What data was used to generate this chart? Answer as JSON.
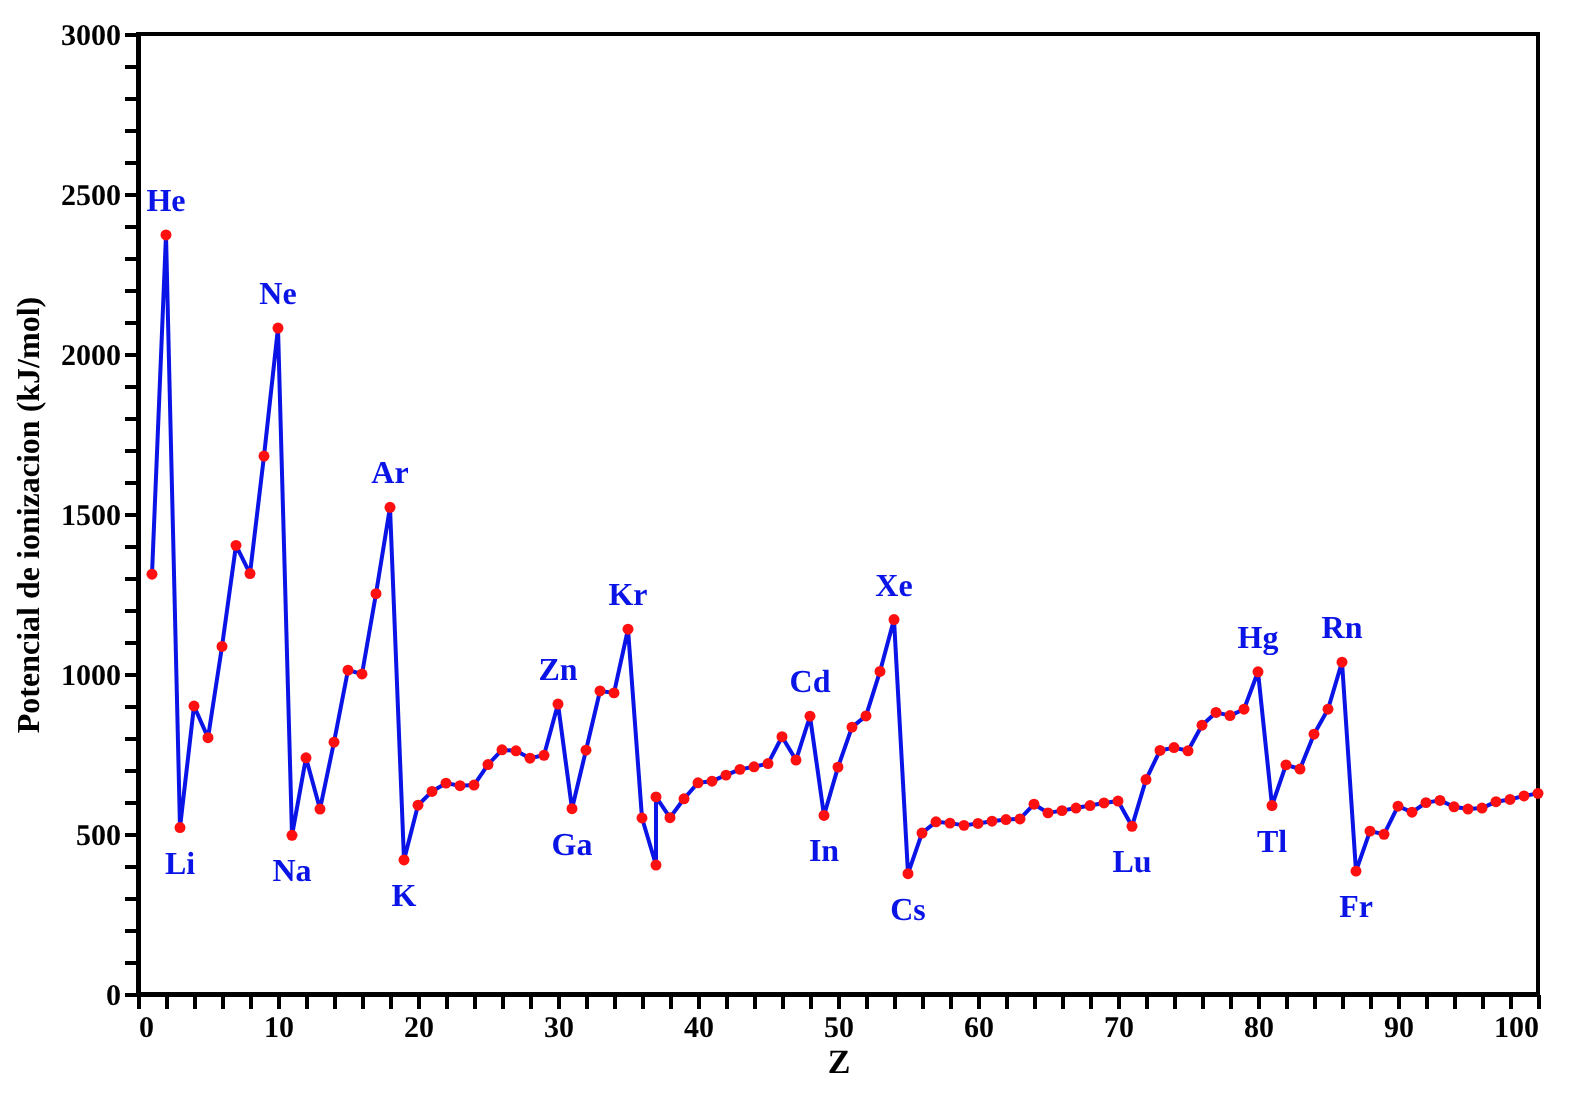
{
  "chart_data": {
    "type": "line",
    "xlabel": "Z",
    "ylabel": "Potencial de ionizacion (kJ/mol)",
    "xlim": [
      0,
      100
    ],
    "ylim": [
      0,
      3000
    ],
    "xticks": [
      0,
      {
        "value": 2,
        "label": null
      },
      {
        "value": 4,
        "label": null
      },
      {
        "value": 6,
        "label": null
      },
      {
        "value": 8,
        "label": null
      },
      10,
      {
        "value": 12,
        "label": null
      },
      {
        "value": 14,
        "label": null
      },
      {
        "value": 16,
        "label": null
      },
      {
        "value": 18,
        "label": null
      },
      20,
      {
        "value": 22,
        "label": null
      },
      {
        "value": 24,
        "label": null
      },
      {
        "value": 26,
        "label": null
      },
      {
        "value": 28,
        "label": null
      },
      30,
      {
        "value": 32,
        "label": null
      },
      {
        "value": 34,
        "label": null
      },
      {
        "value": 36,
        "label": null
      },
      {
        "value": 38,
        "label": null
      },
      40,
      {
        "value": 42,
        "label": null
      },
      {
        "value": 44,
        "label": null
      },
      {
        "value": 46,
        "label": null
      },
      {
        "value": 48,
        "label": null
      },
      50,
      {
        "value": 52,
        "label": null
      },
      {
        "value": 54,
        "label": null
      },
      {
        "value": 56,
        "label": null
      },
      {
        "value": 58,
        "label": null
      },
      60,
      {
        "value": 62,
        "label": null
      },
      {
        "value": 64,
        "label": null
      },
      {
        "value": 66,
        "label": null
      },
      {
        "value": 68,
        "label": null
      },
      70,
      {
        "value": 72,
        "label": null
      },
      {
        "value": 74,
        "label": null
      },
      {
        "value": 76,
        "label": null
      },
      {
        "value": 78,
        "label": null
      },
      80,
      {
        "value": 82,
        "label": null
      },
      {
        "value": 84,
        "label": null
      },
      {
        "value": 86,
        "label": null
      },
      {
        "value": 88,
        "label": null
      },
      90,
      {
        "value": 92,
        "label": null
      },
      {
        "value": 94,
        "label": null
      },
      {
        "value": 96,
        "label": null
      },
      {
        "value": 98,
        "label": null
      },
      100
    ],
    "yticks": [
      0,
      {
        "value": 100,
        "label": null
      },
      {
        "value": 200,
        "label": null
      },
      {
        "value": 300,
        "label": null
      },
      {
        "value": 400,
        "label": null
      },
      500,
      {
        "value": 600,
        "label": null
      },
      {
        "value": 700,
        "label": null
      },
      {
        "value": 800,
        "label": null
      },
      {
        "value": 900,
        "label": null
      },
      1000,
      {
        "value": 1100,
        "label": null
      },
      {
        "value": 1200,
        "label": null
      },
      {
        "value": 1300,
        "label": null
      },
      {
        "value": 1400,
        "label": null
      },
      1500,
      {
        "value": 1600,
        "label": null
      },
      {
        "value": 1700,
        "label": null
      },
      {
        "value": 1800,
        "label": null
      },
      {
        "value": 1900,
        "label": null
      },
      2000,
      {
        "value": 2100,
        "label": null
      },
      {
        "value": 2200,
        "label": null
      },
      {
        "value": 2300,
        "label": null
      },
      {
        "value": 2400,
        "label": null
      },
      2500,
      {
        "value": 2600,
        "label": null
      },
      {
        "value": 2700,
        "label": null
      },
      {
        "value": 2800,
        "label": null
      },
      {
        "value": 2900,
        "label": null
      },
      3000
    ],
    "grid": false,
    "marker": "circle",
    "line_style": "solid",
    "series": [
      {
        "color": "#0a14e6",
        "x": [
          1,
          2,
          3,
          4,
          5,
          6,
          7,
          8,
          9,
          10,
          11,
          12,
          13,
          14,
          15,
          16,
          17,
          18,
          19,
          20,
          21,
          22,
          23,
          24,
          25,
          26,
          27,
          28,
          29,
          30,
          31,
          32,
          33,
          34,
          35,
          36,
          37,
          37,
          38,
          39,
          40,
          41,
          42,
          43,
          44,
          45,
          46,
          47,
          48,
          49,
          50,
          51,
          52,
          53,
          54,
          55,
          56,
          57,
          58,
          59,
          60,
          61,
          62,
          63,
          64,
          65,
          66,
          67,
          68,
          69,
          70,
          71,
          72,
          73,
          74,
          75,
          76,
          77,
          78,
          79,
          80,
          81,
          82,
          83,
          84,
          85,
          86,
          87,
          88,
          89,
          90,
          91,
          92,
          93,
          94,
          95,
          96,
          97,
          98,
          99,
          100
        ],
        "values": [
          1312,
          2372,
          520,
          900,
          801,
          1086,
          1402,
          1314,
          1681,
          2081,
          496,
          738,
          578,
          787,
          1012,
          1000,
          1251,
          1521,
          419,
          590,
          633,
          659,
          651,
          653,
          717,
          763,
          760,
          737,
          746,
          906,
          579,
          762,
          947,
          941,
          1140,
          550,
          403,
          616,
          551,
          610,
          660,
          665,
          684,
          702,
          710,
          720,
          804,
          731,
          868,
          558,
          709,
          834,
          869,
          1008,
          1170,
          376,
          503,
          538,
          534,
          527,
          533,
          540,
          545,
          547,
          593,
          566,
          573,
          581,
          589,
          597,
          603,
          524,
          670,
          761,
          770,
          760,
          840,
          880,
          870,
          890,
          1007,
          589,
          716,
          703,
          812,
          890,
          1037,
          384,
          509,
          499,
          587,
          568,
          598,
          605,
          585,
          578,
          581,
          601,
          608,
          619,
          627
        ],
        "colors": [
          "#ff1010",
          "#ff1010",
          "#ff1010",
          "#ff1010",
          "#ff1010",
          "#ff1010",
          "#ff1010",
          "#ff1010",
          "#ff1010",
          "#ff1010",
          "#ff1010",
          "#ff1010",
          "#ff1010",
          "#ff1010",
          "#ff1010",
          "#ff1010",
          "#ff1010",
          "#ff1010",
          "#ff1010",
          "#ff1010",
          "#ff1010",
          "#ff1010",
          "#ff1010",
          "#ff1010",
          "#ff1010",
          "#ff1010",
          "#ff1010",
          "#ff1010",
          "#ff1010",
          "#ff1010",
          "#ff1010",
          "#ff1010",
          "#ff1010",
          "#ff1010",
          "#ff1010",
          "#ff1010",
          "#ff1010",
          "#ff1010",
          "#ff1010",
          "#ff1010",
          "#ff1010",
          "#ff1010",
          "#ff1010",
          "#ff1010",
          "#ff1010",
          "#ff1010",
          "#ff1010",
          "#ff1010",
          "#ff1010",
          "#ff1010",
          "#ff1010",
          "#ff1010",
          "#ff1010",
          "#ff1010",
          "#ff1010",
          "#ff1010",
          "#ff1010",
          "#ff1010",
          "#ff1010",
          "#ff1010",
          "#ff1010",
          "#ff1010",
          "#ff1010",
          "#ff1010",
          "#ff1010",
          "#ff1010",
          "#ff1010",
          "#ff1010",
          "#ff1010",
          "#ff1010",
          "#ff1010",
          "#ff1010",
          "#ff1010",
          "#ff1010",
          "#ff1010",
          "#ff1010",
          "#ff1010",
          "#ff1010",
          "#ff1010",
          "#ff1010",
          "#ff1010",
          "#ff1010",
          "#ff1010",
          "#ff1010",
          "#ff1010",
          "#ff1010",
          "#ff1010",
          "#ff1010",
          "#ff1010",
          "#ff1010",
          "#ff1010",
          "#ff1010",
          "#ff1010",
          "#ff1010",
          "#ff1010",
          "#ff1010",
          "#ff1010",
          "#ff1010",
          "#ff1010",
          "#ff1010",
          "#ff1010"
        ]
      }
    ],
    "annotations": [
      {
        "text": "He",
        "x": 2,
        "y": 2372
      },
      {
        "text": "Li",
        "x": 3,
        "y": 520
      },
      {
        "text": "Ne",
        "x": 10,
        "y": 2081
      },
      {
        "text": "Na",
        "x": 11,
        "y": 496
      },
      {
        "text": "Ar",
        "x": 18,
        "y": 1521
      },
      {
        "text": "K",
        "x": 19,
        "y": 419
      },
      {
        "text": "Zn",
        "x": 30,
        "y": 906
      },
      {
        "text": "Ga",
        "x": 31,
        "y": 579
      },
      {
        "text": "Kr",
        "x": 35,
        "y": 1140
      },
      {
        "text": "Cd",
        "x": 48,
        "y": 868
      },
      {
        "text": "In",
        "x": 49,
        "y": 558
      },
      {
        "text": "Xe",
        "x": 54,
        "y": 1170
      },
      {
        "text": "Cs",
        "x": 55,
        "y": 376
      },
      {
        "text": "Lu",
        "x": 71,
        "y": 524
      },
      {
        "text": "Hg",
        "x": 80,
        "y": 1007
      },
      {
        "text": "Tl",
        "x": 81,
        "y": 589
      },
      {
        "text": "Rn",
        "x": 86,
        "y": 1037
      },
      {
        "text": "Fr",
        "x": 87,
        "y": 384
      }
    ]
  }
}
